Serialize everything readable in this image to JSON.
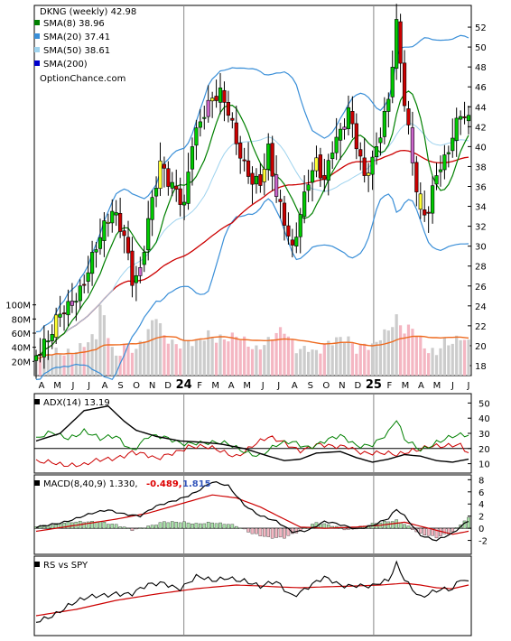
{
  "chart_data": {
    "type": "line",
    "title": "DKNG (weekly) 42.98",
    "watermark": "OptionChance.com",
    "x_ticks": [
      "A",
      "M",
      "J",
      "J",
      "A",
      "S",
      "O",
      "N",
      "D",
      "24",
      "F",
      "M",
      "A",
      "M",
      "J",
      "J",
      "A",
      "S",
      "O",
      "N",
      "D",
      "25",
      "F",
      "M",
      "A",
      "M",
      "J",
      "J"
    ],
    "price_axis": {
      "ylim": [
        17,
        54
      ],
      "ticks": [
        "52",
        "50",
        "48",
        "46",
        "44",
        "42",
        "40",
        "38",
        "36",
        "34",
        "32",
        "30",
        "28",
        "26",
        "24",
        "22",
        "20",
        "18"
      ]
    },
    "volume_axis": {
      "ylim": [
        0,
        120
      ],
      "ticks": [
        "100M",
        "80M",
        "60M",
        "40M",
        "20M"
      ]
    },
    "legend": [
      {
        "label": "SMA(8) 38.96",
        "color": "#008000"
      },
      {
        "label": "SMA(20) 37.41",
        "color": "#3a8fd8"
      },
      {
        "label": "SMA(50) 38.61",
        "color": "#9fd3ee"
      },
      {
        "label": "SMA(200)",
        "color": "#0000cc"
      }
    ],
    "colors": {
      "up": "#00cc00",
      "down": "#cc0000",
      "sma8": "#008000",
      "bollinger": "#3a8fd8",
      "sma50": "#cc0000",
      "volume_up": "#cccccc",
      "volume_down": "#f4b6c2",
      "volume_avg": "#ee6a1f",
      "neutral": "#ffff33",
      "outside": "#cc66cc"
    },
    "price_anchors": [
      [
        0,
        19
      ],
      [
        3,
        20
      ],
      [
        6,
        23
      ],
      [
        8,
        24
      ],
      [
        11,
        26
      ],
      [
        15,
        30
      ],
      [
        19,
        33
      ],
      [
        22,
        31
      ],
      [
        24,
        27
      ],
      [
        26,
        28
      ],
      [
        28,
        33
      ],
      [
        31,
        38
      ],
      [
        33,
        36
      ],
      [
        35,
        35
      ],
      [
        37,
        34
      ],
      [
        39,
        41
      ],
      [
        42,
        44
      ],
      [
        44,
        45
      ],
      [
        46,
        45
      ],
      [
        48,
        43
      ],
      [
        50,
        40
      ],
      [
        52,
        38
      ],
      [
        54,
        37
      ],
      [
        56,
        37
      ],
      [
        58,
        40
      ],
      [
        60,
        35
      ],
      [
        62,
        32
      ],
      [
        64,
        29
      ],
      [
        66,
        33
      ],
      [
        68,
        37
      ],
      [
        70,
        39
      ],
      [
        72,
        37
      ],
      [
        74,
        40
      ],
      [
        76,
        41
      ],
      [
        78,
        43
      ],
      [
        80,
        40
      ],
      [
        82,
        37
      ],
      [
        84,
        39
      ],
      [
        86,
        42
      ],
      [
        88,
        45
      ],
      [
        90,
        52
      ],
      [
        92,
        44
      ],
      [
        94,
        38
      ],
      [
        96,
        33
      ],
      [
        98,
        34
      ],
      [
        100,
        38
      ],
      [
        102,
        39
      ],
      [
        104,
        41
      ],
      [
        106,
        43
      ],
      [
        108,
        42
      ]
    ],
    "volume_anchors": [
      [
        0,
        20
      ],
      [
        5,
        35
      ],
      [
        10,
        40
      ],
      [
        15,
        50
      ],
      [
        16,
        95
      ],
      [
        18,
        55
      ],
      [
        20,
        25
      ],
      [
        22,
        50
      ],
      [
        25,
        40
      ],
      [
        28,
        60
      ],
      [
        30,
        80
      ],
      [
        32,
        50
      ],
      [
        35,
        45
      ],
      [
        38,
        55
      ],
      [
        40,
        50
      ],
      [
        43,
        55
      ],
      [
        45,
        45
      ],
      [
        48,
        50
      ],
      [
        50,
        60
      ],
      [
        52,
        55
      ],
      [
        55,
        40
      ],
      [
        58,
        45
      ],
      [
        60,
        55
      ],
      [
        62,
        60
      ],
      [
        65,
        40
      ],
      [
        68,
        45
      ],
      [
        70,
        35
      ],
      [
        72,
        40
      ],
      [
        75,
        45
      ],
      [
        78,
        50
      ],
      [
        80,
        40
      ],
      [
        82,
        50
      ],
      [
        84,
        45
      ],
      [
        86,
        55
      ],
      [
        88,
        60
      ],
      [
        90,
        75
      ],
      [
        92,
        60
      ],
      [
        94,
        70
      ],
      [
        96,
        55
      ],
      [
        98,
        40
      ],
      [
        100,
        35
      ],
      [
        102,
        45
      ],
      [
        104,
        40
      ],
      [
        106,
        50
      ],
      [
        108,
        45
      ]
    ],
    "adx": {
      "label": "ADX(14) 13.19",
      "ylim": [
        5,
        55
      ],
      "ticks": [
        "50",
        "40",
        "30",
        "20",
        "10"
      ],
      "adx_anchors": [
        [
          0,
          25
        ],
        [
          6,
          30
        ],
        [
          10,
          40
        ],
        [
          12,
          45
        ],
        [
          18,
          48
        ],
        [
          22,
          38
        ],
        [
          25,
          32
        ],
        [
          30,
          28
        ],
        [
          36,
          25
        ],
        [
          42,
          24
        ],
        [
          46,
          23
        ],
        [
          52,
          20
        ],
        [
          58,
          15
        ],
        [
          62,
          12
        ],
        [
          66,
          13
        ],
        [
          70,
          17
        ],
        [
          76,
          18
        ],
        [
          80,
          14
        ],
        [
          84,
          11
        ],
        [
          88,
          13
        ],
        [
          92,
          16
        ],
        [
          96,
          15
        ],
        [
          100,
          12
        ],
        [
          104,
          11
        ],
        [
          108,
          13
        ]
      ],
      "plus_di_anchors": [
        [
          0,
          25
        ],
        [
          4,
          30
        ],
        [
          8,
          28
        ],
        [
          12,
          32
        ],
        [
          16,
          25
        ],
        [
          20,
          28
        ],
        [
          24,
          20
        ],
        [
          28,
          28
        ],
        [
          32,
          26
        ],
        [
          36,
          24
        ],
        [
          40,
          25
        ],
        [
          44,
          23
        ],
        [
          48,
          22
        ],
        [
          52,
          19
        ],
        [
          56,
          16
        ],
        [
          60,
          21
        ],
        [
          64,
          24
        ],
        [
          68,
          22
        ],
        [
          72,
          25
        ],
        [
          76,
          27
        ],
        [
          80,
          22
        ],
        [
          84,
          24
        ],
        [
          88,
          30
        ],
        [
          90,
          38
        ],
        [
          92,
          25
        ],
        [
          96,
          20
        ],
        [
          100,
          25
        ],
        [
          104,
          27
        ],
        [
          108,
          28
        ]
      ],
      "minus_di_anchors": [
        [
          0,
          10
        ],
        [
          4,
          12
        ],
        [
          8,
          10
        ],
        [
          12,
          8
        ],
        [
          16,
          12
        ],
        [
          20,
          15
        ],
        [
          24,
          18
        ],
        [
          28,
          14
        ],
        [
          30,
          12
        ],
        [
          34,
          18
        ],
        [
          38,
          22
        ],
        [
          42,
          20
        ],
        [
          46,
          18
        ],
        [
          50,
          16
        ],
        [
          54,
          22
        ],
        [
          58,
          26
        ],
        [
          62,
          24
        ],
        [
          66,
          20
        ],
        [
          70,
          22
        ],
        [
          74,
          20
        ],
        [
          78,
          22
        ],
        [
          82,
          18
        ],
        [
          86,
          16
        ],
        [
          90,
          15
        ],
        [
          94,
          20
        ],
        [
          98,
          22
        ],
        [
          102,
          20
        ],
        [
          106,
          22
        ],
        [
          108,
          18
        ]
      ]
    },
    "macd": {
      "label": "MACD(8,40,9) 1.330,",
      "signal_label": "-0.489,",
      "hist_label": "1.815",
      "ylim": [
        -4,
        8.5
      ],
      "ticks": [
        "8",
        "6",
        "4",
        "2",
        "0",
        "-2"
      ],
      "macd_anchors": [
        [
          0,
          0
        ],
        [
          6,
          1
        ],
        [
          12,
          2
        ],
        [
          18,
          3
        ],
        [
          22,
          2.5
        ],
        [
          26,
          2
        ],
        [
          30,
          3.5
        ],
        [
          36,
          5
        ],
        [
          40,
          6
        ],
        [
          44,
          7.5
        ],
        [
          48,
          7
        ],
        [
          52,
          4
        ],
        [
          56,
          2
        ],
        [
          60,
          1
        ],
        [
          64,
          -0.5
        ],
        [
          68,
          -0.2
        ],
        [
          72,
          1
        ],
        [
          76,
          0.5
        ],
        [
          80,
          0
        ],
        [
          84,
          0.5
        ],
        [
          88,
          1.5
        ],
        [
          90,
          3
        ],
        [
          92,
          2
        ],
        [
          96,
          -1
        ],
        [
          100,
          -2
        ],
        [
          104,
          -1
        ],
        [
          108,
          1.3
        ]
      ],
      "signal_anchors": [
        [
          0,
          -0.5
        ],
        [
          10,
          0.5
        ],
        [
          20,
          1.5
        ],
        [
          28,
          2.5
        ],
        [
          36,
          4
        ],
        [
          44,
          5.5
        ],
        [
          50,
          5
        ],
        [
          56,
          3.5
        ],
        [
          62,
          1.5
        ],
        [
          66,
          0.2
        ],
        [
          72,
          0
        ],
        [
          80,
          0.2
        ],
        [
          86,
          0.5
        ],
        [
          92,
          1
        ],
        [
          98,
          0
        ],
        [
          104,
          -1
        ],
        [
          108,
          -0.49
        ]
      ],
      "hist_anchors": [
        [
          0,
          0.4
        ],
        [
          6,
          0.8
        ],
        [
          12,
          1.0
        ],
        [
          16,
          1.2
        ],
        [
          20,
          0.6
        ],
        [
          24,
          -0.4
        ],
        [
          28,
          0.3
        ],
        [
          32,
          1.2
        ],
        [
          36,
          1.0
        ],
        [
          40,
          0.6
        ],
        [
          44,
          1.0
        ],
        [
          48,
          0.8
        ],
        [
          50,
          0.4
        ],
        [
          54,
          -1.0
        ],
        [
          58,
          -1.5
        ],
        [
          62,
          -1.4
        ],
        [
          66,
          -0.4
        ],
        [
          70,
          0.8
        ],
        [
          74,
          0.5
        ],
        [
          78,
          -0.2
        ],
        [
          82,
          0.3
        ],
        [
          86,
          0.9
        ],
        [
          90,
          1.4
        ],
        [
          92,
          0.8
        ],
        [
          96,
          -1.0
        ],
        [
          100,
          -1.6
        ],
        [
          104,
          -0.5
        ],
        [
          106,
          0.8
        ],
        [
          108,
          1.8
        ]
      ]
    },
    "rs": {
      "label": "RS vs SPY",
      "rs_anchors": [
        [
          0,
          10
        ],
        [
          4,
          20
        ],
        [
          8,
          30
        ],
        [
          12,
          35
        ],
        [
          16,
          40
        ],
        [
          20,
          45
        ],
        [
          24,
          42
        ],
        [
          28,
          50
        ],
        [
          32,
          55
        ],
        [
          36,
          50
        ],
        [
          40,
          60
        ],
        [
          44,
          55
        ],
        [
          48,
          62
        ],
        [
          52,
          58
        ],
        [
          56,
          48
        ],
        [
          60,
          55
        ],
        [
          64,
          42
        ],
        [
          68,
          50
        ],
        [
          72,
          58
        ],
        [
          76,
          52
        ],
        [
          80,
          54
        ],
        [
          84,
          50
        ],
        [
          88,
          55
        ],
        [
          90,
          75
        ],
        [
          92,
          60
        ],
        [
          96,
          40
        ],
        [
          100,
          44
        ],
        [
          104,
          46
        ],
        [
          106,
          60
        ],
        [
          108,
          57
        ]
      ],
      "ma_anchors": [
        [
          0,
          18
        ],
        [
          10,
          25
        ],
        [
          20,
          35
        ],
        [
          30,
          42
        ],
        [
          40,
          48
        ],
        [
          50,
          52
        ],
        [
          56,
          51
        ],
        [
          60,
          50
        ],
        [
          66,
          49
        ],
        [
          72,
          50
        ],
        [
          80,
          51
        ],
        [
          86,
          52
        ],
        [
          92,
          54
        ],
        [
          96,
          52
        ],
        [
          100,
          49
        ],
        [
          104,
          48
        ],
        [
          108,
          52
        ]
      ]
    }
  }
}
